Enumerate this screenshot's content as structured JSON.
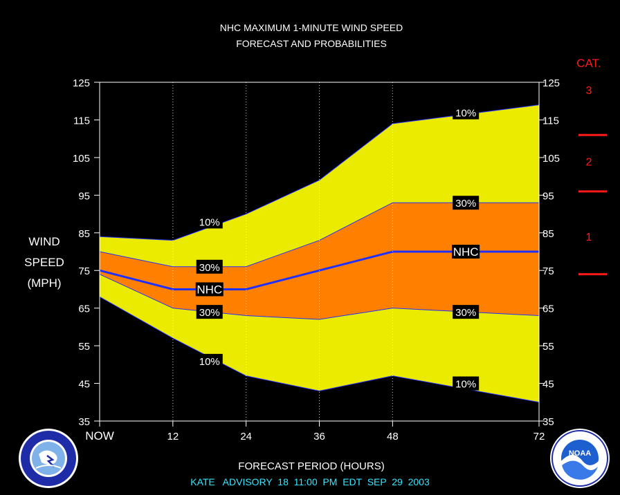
{
  "chart_data": {
    "type": "area",
    "title": "NHC MAXIMUM 1-MINUTE WIND SPEED",
    "subtitle": "FORECAST AND PROBABILITIES",
    "xlabel": "FORECAST PERIOD (HOURS)",
    "ylabel_lines": [
      "WIND",
      "SPEED",
      "(MPH)"
    ],
    "x_ticks": [
      {
        "value": 0,
        "label": "NOW"
      },
      {
        "value": 12,
        "label": "12"
      },
      {
        "value": 24,
        "label": "24"
      },
      {
        "value": 36,
        "label": "36"
      },
      {
        "value": 48,
        "label": "48"
      },
      {
        "value": 72,
        "label": "72"
      }
    ],
    "y_ticks": [
      35,
      45,
      55,
      65,
      75,
      85,
      95,
      105,
      115,
      125
    ],
    "xlim": [
      0,
      72
    ],
    "ylim": [
      35,
      125
    ],
    "x": [
      0,
      12,
      24,
      36,
      48,
      72
    ],
    "series": [
      {
        "name": "10%",
        "role": "upper_outer",
        "values": [
          84,
          83,
          90,
          99,
          114,
          119
        ]
      },
      {
        "name": "30%",
        "role": "upper_inner",
        "values": [
          80,
          76,
          76,
          83,
          93,
          93
        ]
      },
      {
        "name": "NHC",
        "role": "forecast",
        "values": [
          75,
          70,
          70,
          75,
          80,
          80
        ]
      },
      {
        "name": "30%",
        "role": "lower_inner",
        "values": [
          74,
          65,
          63,
          62,
          65,
          63
        ]
      },
      {
        "name": "10%",
        "role": "lower_outer",
        "values": [
          68,
          57,
          47,
          43,
          47,
          40
        ]
      }
    ],
    "labels": [
      {
        "text": "10%",
        "x": 18,
        "y": 88
      },
      {
        "text": "30%",
        "x": 18,
        "y": 76
      },
      {
        "text": "NHC",
        "x": 18,
        "y": 70
      },
      {
        "text": "30%",
        "x": 18,
        "y": 64
      },
      {
        "text": "10%",
        "x": 18,
        "y": 51
      },
      {
        "text": "10%",
        "x": 60,
        "y": 117
      },
      {
        "text": "30%",
        "x": 60,
        "y": 93
      },
      {
        "text": "NHC",
        "x": 60,
        "y": 80
      },
      {
        "text": "30%",
        "x": 60,
        "y": 64
      },
      {
        "text": "10%",
        "x": 60,
        "y": 45
      }
    ],
    "category_scale": {
      "title": "CAT.",
      "bands": [
        {
          "label": "3",
          "y": 123
        },
        {
          "label": "2",
          "y": 104
        },
        {
          "label": "1",
          "y": 84
        }
      ],
      "thresholds": [
        111,
        96,
        74
      ]
    },
    "colors": {
      "outer_band": "#ebeb00",
      "inner_band": "#ff8000",
      "forecast_line": "#1f2fff",
      "category_text": "#ff1a1a",
      "footer_text": "#33e6ff"
    },
    "grid": "dotted vertical lines at x ticks"
  },
  "footer": {
    "advisory": "KATE   ADVISORY  18  11:00  PM  EDT  SEP  29  2003"
  },
  "logos": {
    "left": {
      "icon": "nws-logo-icon",
      "text": "NATIONAL WEATHER SERVICE"
    },
    "right": {
      "icon": "noaa-logo-icon",
      "text": "NOAA"
    }
  }
}
